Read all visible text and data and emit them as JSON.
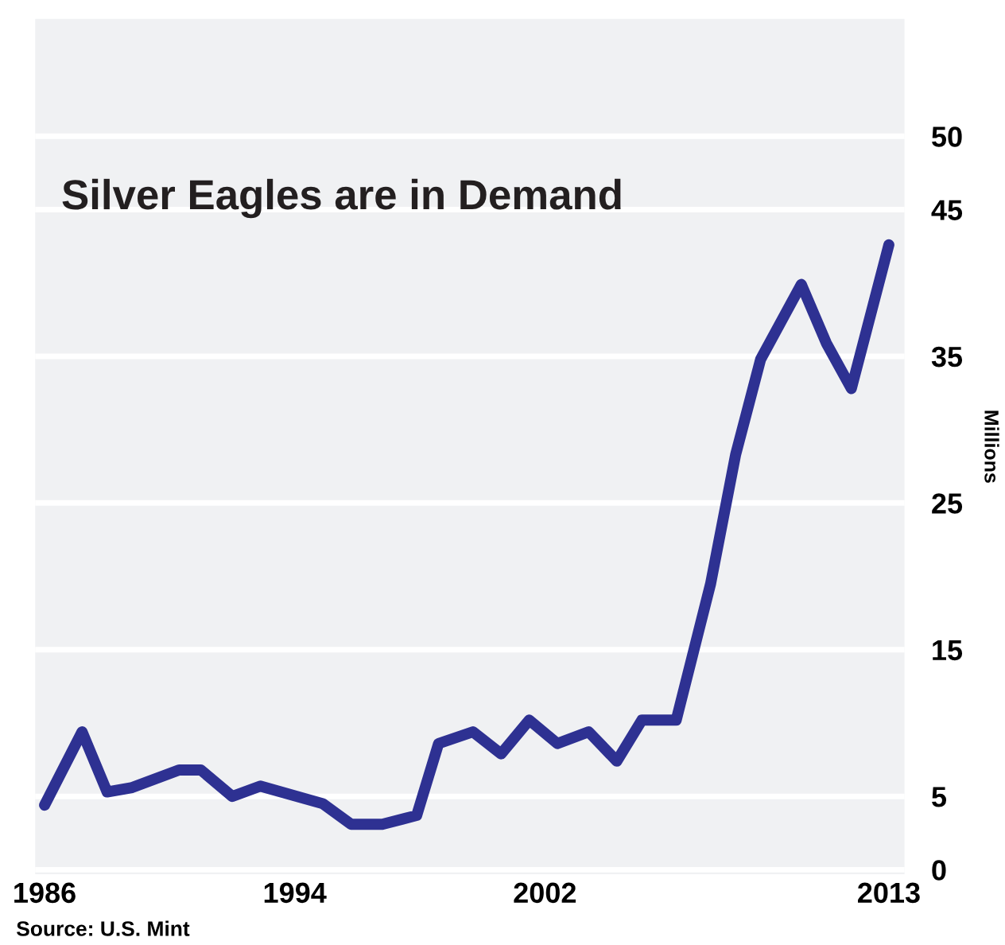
{
  "chart_data": {
    "type": "line",
    "title": "Silver Eagles are in Demand",
    "ylabel": "Millions",
    "annotations": [
      "Source: U.S. Mint"
    ],
    "x": [
      1986.0,
      1987.2,
      1988.0,
      1988.8,
      1990.3,
      1991.0,
      1992.0,
      1992.9,
      1994.9,
      1995.8,
      1996.8,
      1997.9,
      1998.6,
      1999.7,
      2000.6,
      2001.5,
      2002.4,
      2003.4,
      2004.3,
      2005.1,
      2006.2,
      2007.3,
      2008.1,
      2008.9,
      2010.2,
      2011.0,
      2011.8,
      2013.0
    ],
    "series": [
      {
        "color": "#2e3192",
        "values": [
          4.4,
          9.4,
          5.3,
          5.6,
          6.8,
          6.8,
          5.0,
          5.7,
          4.5,
          3.1,
          3.1,
          3.7,
          8.6,
          9.4,
          7.9,
          10.2,
          8.6,
          9.4,
          7.4,
          10.2,
          10.2,
          19.5,
          28.3,
          34.8,
          39.9,
          35.9,
          32.8,
          42.6
        ]
      }
    ],
    "xlim": [
      1985.7,
      2013.5
    ],
    "xticks": [
      1986,
      1994,
      2002,
      2013
    ],
    "ylim": [
      -0.3,
      58
    ],
    "yticks": [
      0,
      5,
      15,
      25,
      35,
      45,
      50
    ],
    "grid": "y",
    "marker": "none",
    "line_style": "solid"
  }
}
